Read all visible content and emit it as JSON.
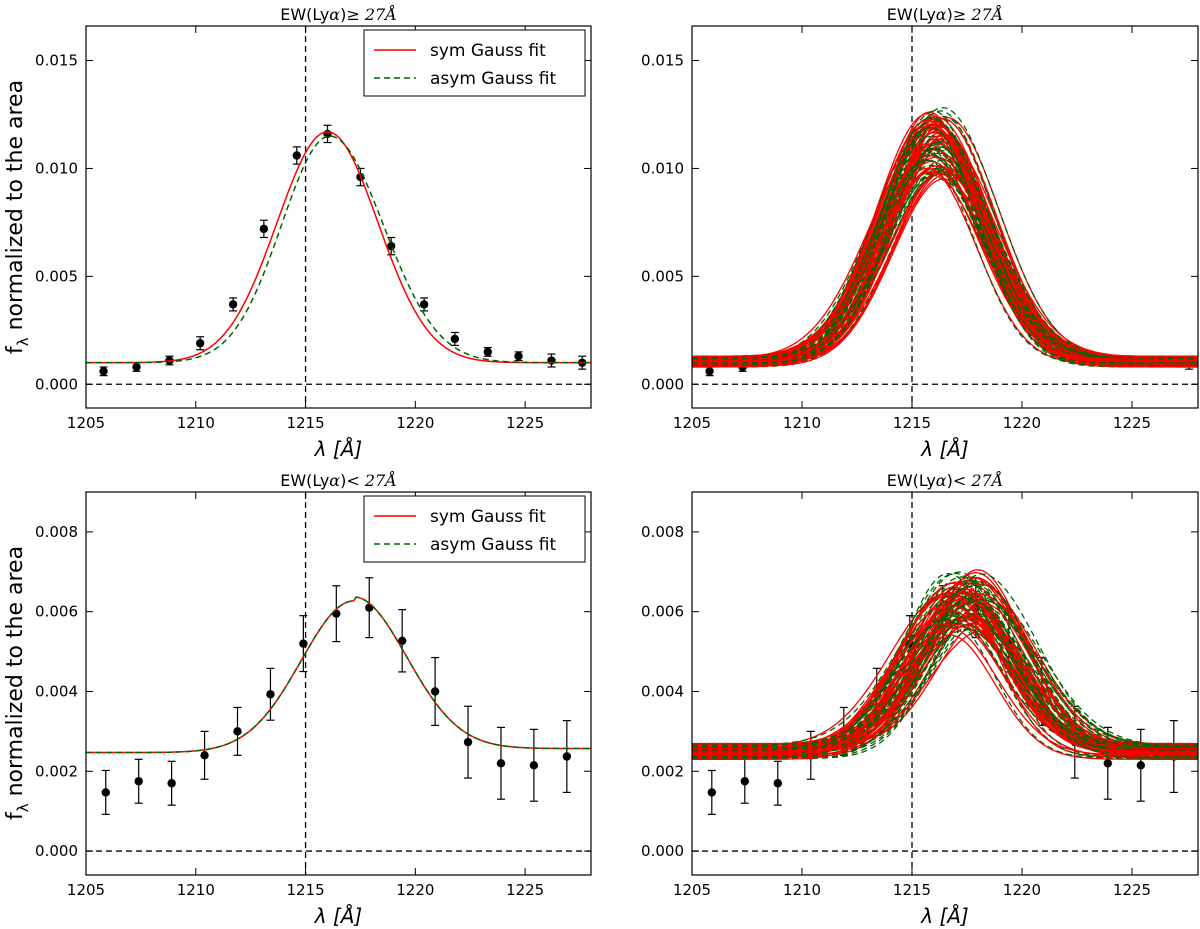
{
  "figure": {
    "ylabel": "fλ normalized to the area",
    "ylabel_main": "f",
    "ylabel_sub": "λ",
    "ylabel_rest": " normalized to the area"
  },
  "legend": {
    "sym_label": "sym Gauss fit",
    "asym_label": "asym Gauss fit"
  },
  "colors": {
    "sym": "#ff0000",
    "asym": "#006400",
    "points": "#000000"
  },
  "chart_data": [
    {
      "id": "top-left",
      "type": "scatter",
      "title": "EW(Lyα) ≥ 27Å",
      "title_pre": "EW(Ly",
      "title_alpha": "α",
      "title_post": ")",
      "title_rel": "≥ 27",
      "title_unit": "Å",
      "xlabel": "λ [Å]",
      "xlim": [
        1205,
        1228
      ],
      "ylim": [
        -0.0011,
        0.0166
      ],
      "xticks": [
        1205,
        1210,
        1215,
        1220,
        1225
      ],
      "yticks": [
        0.0,
        0.005,
        0.01,
        0.015
      ],
      "ytick_labels": [
        "0.000",
        "0.005",
        "0.010",
        "0.015"
      ],
      "vline_x": 1215,
      "hline_y": 0,
      "legend": true,
      "points": {
        "x": [
          1205.8,
          1207.3,
          1208.8,
          1210.2,
          1211.7,
          1213.1,
          1214.6,
          1216.0,
          1217.5,
          1218.9,
          1220.4,
          1221.8,
          1223.3,
          1224.7,
          1226.2,
          1227.6
        ],
        "y": [
          0.0006,
          0.0008,
          0.0011,
          0.0019,
          0.0037,
          0.0072,
          0.0106,
          0.0116,
          0.0096,
          0.0064,
          0.0037,
          0.0021,
          0.0015,
          0.0013,
          0.0011,
          0.001
        ],
        "err": [
          0.0002,
          0.0002,
          0.0002,
          0.0003,
          0.0003,
          0.0004,
          0.0004,
          0.0004,
          0.0004,
          0.0004,
          0.0003,
          0.0003,
          0.0002,
          0.0002,
          0.0003,
          0.0003
        ]
      },
      "sym_fit": {
        "baseline": 0.001,
        "amp": 0.0107,
        "center": 1216.0,
        "sigma": 2.3
      },
      "asym_fit": {
        "baseline": 0.001,
        "amp": 0.0105,
        "center": 1216.1,
        "sigma_left": 2.2,
        "sigma_right": 2.45
      }
    },
    {
      "id": "top-right",
      "type": "scatter",
      "title": "EW(Lyα) ≥ 27Å",
      "title_pre": "EW(Ly",
      "title_alpha": "α",
      "title_post": ")",
      "title_rel": "≥ 27",
      "title_unit": "Å",
      "xlabel": "λ [Å]",
      "xlim": [
        1205,
        1228
      ],
      "ylim": [
        -0.0011,
        0.0166
      ],
      "xticks": [
        1205,
        1210,
        1215,
        1220,
        1225
      ],
      "yticks": [
        0.0,
        0.005,
        0.01,
        0.015
      ],
      "ytick_labels": [
        "0.000",
        "0.005",
        "0.010",
        "0.015"
      ],
      "vline_x": 1215,
      "hline_y": 0,
      "legend": false,
      "points": {
        "x": [
          1205.8,
          1207.3,
          1227.6
        ],
        "y": [
          0.0006,
          0.0008,
          0.001
        ],
        "err": [
          0.0002,
          0.0002,
          0.0003
        ]
      },
      "realizations": {
        "count": 45,
        "baseline_range": [
          0.0008,
          0.0013
        ],
        "amp_range": [
          0.0086,
          0.0118
        ],
        "center_range": [
          1215.6,
          1216.6
        ],
        "sigma_range": [
          2.1,
          2.6
        ]
      }
    },
    {
      "id": "bottom-left",
      "type": "scatter",
      "title": "EW(Lyα) < 27Å",
      "title_pre": "EW(Ly",
      "title_alpha": "α",
      "title_post": ")",
      "title_rel": "< 27",
      "title_unit": "Å",
      "xlabel": "λ [Å]",
      "xlim": [
        1205,
        1228
      ],
      "ylim": [
        -0.0006,
        0.009
      ],
      "xticks": [
        1205,
        1210,
        1215,
        1220,
        1225
      ],
      "yticks": [
        0.0,
        0.002,
        0.004,
        0.006,
        0.008
      ],
      "ytick_labels": [
        "0.000",
        "0.002",
        "0.004",
        "0.006",
        "0.008"
      ],
      "vline_x": 1215,
      "hline_y": 0,
      "legend": true,
      "points": {
        "x": [
          1205.9,
          1207.4,
          1208.9,
          1210.4,
          1211.9,
          1213.4,
          1214.9,
          1216.4,
          1217.9,
          1219.4,
          1220.9,
          1222.4,
          1223.9,
          1225.4,
          1226.9
        ],
        "y": [
          0.00147,
          0.00175,
          0.0017,
          0.0024,
          0.003,
          0.00393,
          0.0052,
          0.00595,
          0.0061,
          0.00527,
          0.004,
          0.00273,
          0.0022,
          0.00215,
          0.00237
        ],
        "err": [
          0.00055,
          0.00055,
          0.00055,
          0.0006,
          0.0006,
          0.00065,
          0.0007,
          0.0007,
          0.00075,
          0.00078,
          0.00085,
          0.0009,
          0.0009,
          0.0009,
          0.0009
        ]
      },
      "sym_fit": {
        "baseline_left": 0.00247,
        "baseline_right": 0.00257,
        "amp": 0.0038,
        "center": 1217.2,
        "sigma": 2.4
      },
      "asym_fit": {
        "baseline_left": 0.00247,
        "baseline_right": 0.00257,
        "amp": 0.0038,
        "center": 1217.2,
        "sigma_left": 2.4,
        "sigma_right": 2.4
      }
    },
    {
      "id": "bottom-right",
      "type": "scatter",
      "title": "EW(Lyα) < 27Å",
      "title_pre": "EW(Ly",
      "title_alpha": "α",
      "title_post": ")",
      "title_rel": "< 27",
      "title_unit": "Å",
      "xlabel": "λ [Å]",
      "xlim": [
        1205,
        1228
      ],
      "ylim": [
        -0.0006,
        0.009
      ],
      "xticks": [
        1205,
        1210,
        1215,
        1220,
        1225
      ],
      "yticks": [
        0.0,
        0.002,
        0.004,
        0.006,
        0.008
      ],
      "ytick_labels": [
        "0.000",
        "0.002",
        "0.004",
        "0.006",
        "0.008"
      ],
      "vline_x": 1215,
      "hline_y": 0,
      "legend": false,
      "points": {
        "x": [
          1205.9,
          1207.4,
          1208.9,
          1210.4,
          1211.9,
          1213.4,
          1214.9,
          1216.4,
          1217.9,
          1219.4,
          1220.9,
          1222.4,
          1223.9,
          1225.4,
          1226.9
        ],
        "y": [
          0.00147,
          0.00175,
          0.0017,
          0.0024,
          0.003,
          0.00393,
          0.0052,
          0.00595,
          0.0061,
          0.00527,
          0.004,
          0.00273,
          0.0022,
          0.00215,
          0.00237
        ],
        "err": [
          0.00055,
          0.00055,
          0.00055,
          0.0006,
          0.0006,
          0.00065,
          0.0007,
          0.0007,
          0.00075,
          0.00078,
          0.00085,
          0.0009,
          0.0009,
          0.0009,
          0.0009
        ]
      },
      "realizations": {
        "count": 45,
        "baseline_range": [
          0.0023,
          0.0027
        ],
        "amp_range": [
          0.0031,
          0.0045
        ],
        "center_range": [
          1216.6,
          1218.3
        ],
        "sigma_range": [
          2.0,
          2.7
        ]
      }
    }
  ]
}
